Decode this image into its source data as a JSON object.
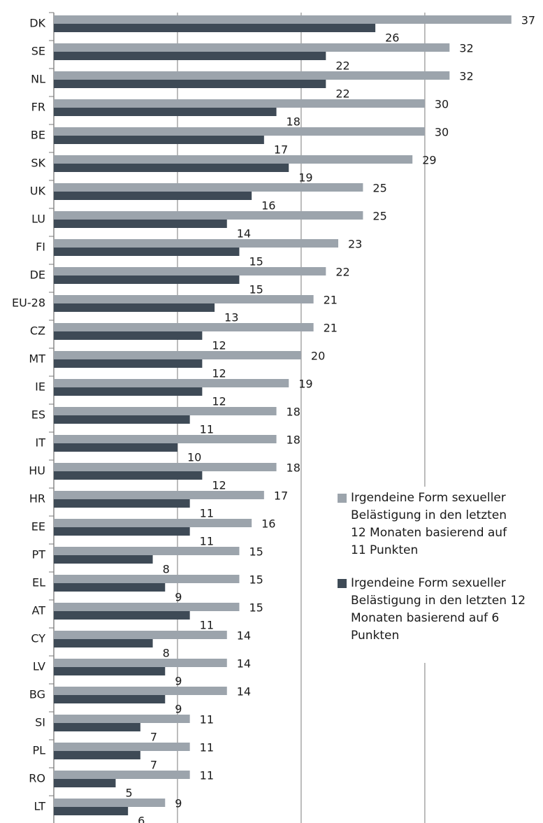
{
  "chart_data": {
    "type": "bar",
    "orientation": "horizontal",
    "categories": [
      "DK",
      "SE",
      "NL",
      "FR",
      "BE",
      "SK",
      "UK",
      "LU",
      "FI",
      "DE",
      "EU-28",
      "CZ",
      "MT",
      "IE",
      "ES",
      "IT",
      "HU",
      "HR",
      "EE",
      "PT",
      "EL",
      "AT",
      "CY",
      "LV",
      "BG",
      "SI",
      "PL",
      "RO",
      "LT"
    ],
    "series": [
      {
        "name": "Irgendeine Form sexueller Belästigung in den letzten 12 Monaten basierend auf 11 Punkten",
        "color": "#9ca4ac",
        "values": [
          37,
          32,
          32,
          30,
          30,
          29,
          25,
          25,
          23,
          22,
          21,
          21,
          20,
          19,
          18,
          18,
          18,
          17,
          16,
          15,
          15,
          15,
          14,
          14,
          14,
          11,
          11,
          11,
          9
        ]
      },
      {
        "name": "Irgendeine Form sexueller Belästigung in den letzten 12 Monaten basierend auf 6 Punkten",
        "color": "#3e4a56",
        "values": [
          26,
          22,
          22,
          18,
          17,
          19,
          16,
          14,
          15,
          15,
          13,
          12,
          12,
          12,
          11,
          10,
          12,
          11,
          11,
          8,
          9,
          11,
          8,
          9,
          9,
          7,
          7,
          5,
          6
        ]
      }
    ],
    "xlim": [
      0,
      39.5
    ],
    "xticks": [
      0,
      10,
      20,
      30
    ],
    "grid": true
  }
}
